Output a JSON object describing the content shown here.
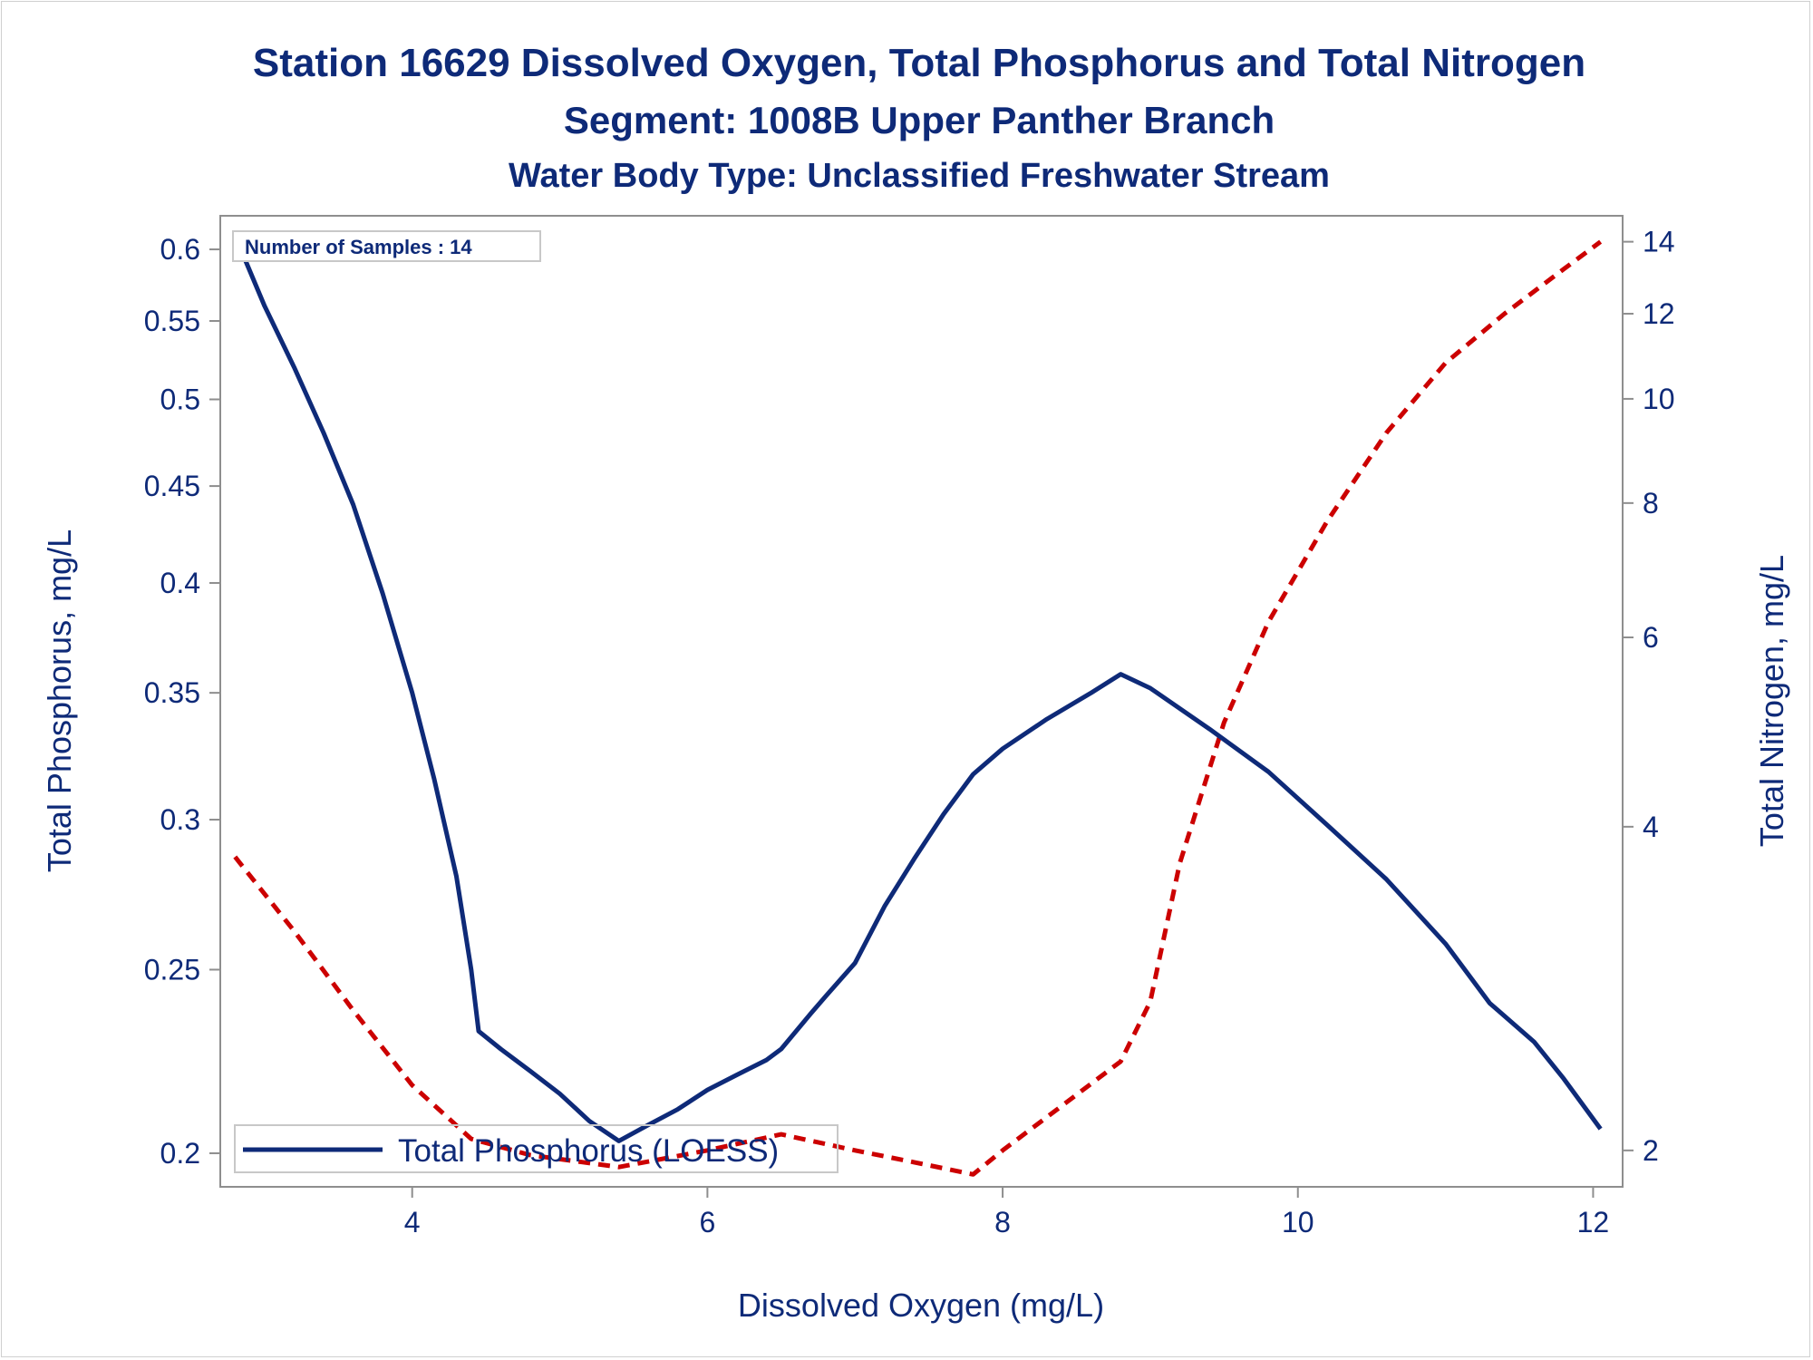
{
  "chart_data": {
    "type": "line",
    "title": "Station 16629  Dissolved Oxygen, Total Phosphorus and Total Nitrogen",
    "subtitle": "Segment: 1008B  Upper Panther Branch",
    "subtitle2": "Water Body Type: Unclassified Freshwater Stream",
    "xlabel": "Dissolved Oxygen (mg/L)",
    "ylabel": "Total Phosphorus, mg/L",
    "y2label": "Total Nitrogen, mg/L",
    "annotation": "Number of Samples : 14",
    "x_ticks": [
      "4",
      "6",
      "8",
      "10",
      "12"
    ],
    "y_ticks": [
      "0.2",
      "0.25",
      "0.3",
      "0.35",
      "0.4",
      "0.45",
      "0.5",
      "0.55",
      "0.6"
    ],
    "y2_ticks": [
      "2",
      "4",
      "6",
      "8",
      "10",
      "12",
      "14"
    ],
    "xlim": [
      2.7,
      12.2
    ],
    "ylim": [
      0.192,
      0.625
    ],
    "y_scale": "log",
    "y2lim": [
      1.85,
      14.8
    ],
    "y2_scale": "log",
    "legend_position": "bottom-left",
    "series": [
      {
        "name": "Total Phosphorus (LOESS)",
        "axis": "left",
        "color": "#0e2a78",
        "style": "solid",
        "x": [
          2.8,
          3.0,
          3.2,
          3.4,
          3.6,
          3.8,
          4.0,
          4.15,
          4.3,
          4.4,
          4.45,
          4.6,
          4.8,
          5.0,
          5.2,
          5.4,
          5.6,
          5.8,
          6.0,
          6.2,
          6.4,
          6.5,
          6.7,
          6.8,
          7.0,
          7.2,
          7.4,
          7.6,
          7.8,
          8.0,
          8.3,
          8.6,
          8.8,
          9.0,
          9.4,
          9.8,
          10.2,
          10.6,
          11.0,
          11.3,
          11.6,
          11.8,
          12.05
        ],
        "values": [
          0.61,
          0.56,
          0.52,
          0.48,
          0.44,
          0.395,
          0.35,
          0.315,
          0.28,
          0.25,
          0.232,
          0.227,
          0.221,
          0.215,
          0.208,
          0.203,
          0.207,
          0.211,
          0.216,
          0.22,
          0.224,
          0.227,
          0.237,
          0.242,
          0.252,
          0.27,
          0.286,
          0.302,
          0.317,
          0.327,
          0.339,
          0.35,
          0.358,
          0.352,
          0.335,
          0.318,
          0.298,
          0.279,
          0.258,
          0.24,
          0.229,
          0.219,
          0.206
        ]
      },
      {
        "name": "Total Nitrogen",
        "axis": "right",
        "color": "#cc0000",
        "style": "dashed",
        "x": [
          2.8,
          3.2,
          3.6,
          4.0,
          4.4,
          4.8,
          5.4,
          6.0,
          6.5,
          7.0,
          7.4,
          7.8,
          8.0,
          8.4,
          8.8,
          9.0,
          9.2,
          9.5,
          9.8,
          10.2,
          10.6,
          11.0,
          11.4,
          11.8,
          12.05
        ],
        "values": [
          3.75,
          3.2,
          2.7,
          2.3,
          2.05,
          1.98,
          1.93,
          2.0,
          2.07,
          2.0,
          1.95,
          1.9,
          2.0,
          2.2,
          2.42,
          2.75,
          3.7,
          5.0,
          6.2,
          7.7,
          9.3,
          10.8,
          12.0,
          13.2,
          14.0
        ]
      }
    ]
  }
}
